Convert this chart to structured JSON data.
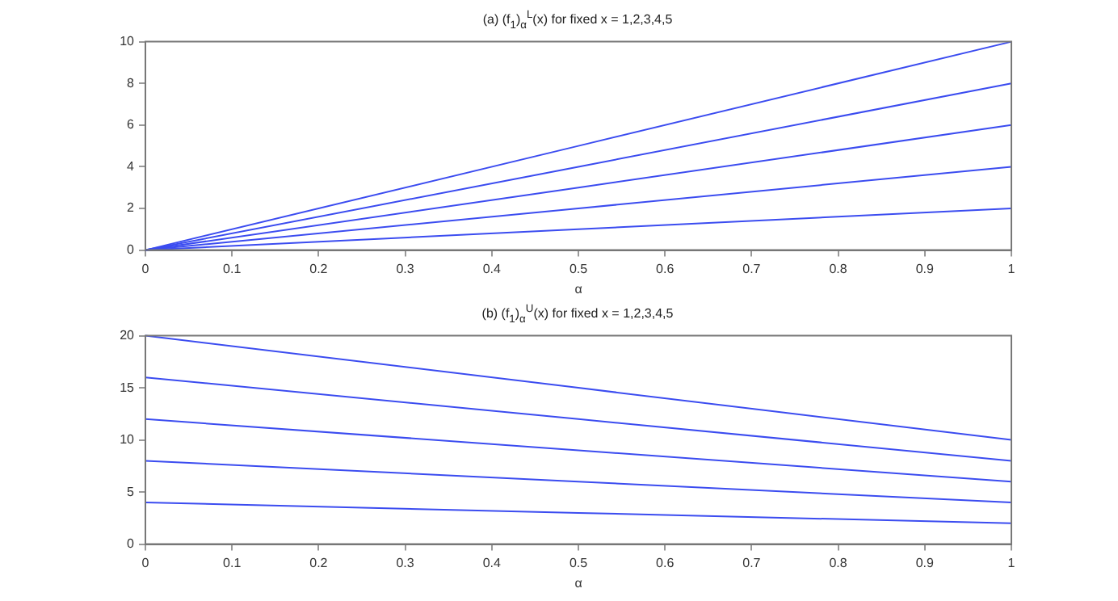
{
  "chart_data": [
    {
      "type": "line",
      "title": "(a) (f$_{1}$)$_{α}$$^{L}$(x) for fixed x = 1,2,3,4,5",
      "xlabel": "α",
      "xlim": [
        0,
        1
      ],
      "xticks": [
        0,
        0.1,
        0.2,
        0.3,
        0.4,
        0.5,
        0.6,
        0.7,
        0.8,
        0.9,
        1
      ],
      "ylim": [
        0,
        10
      ],
      "yticks": [
        0,
        2,
        4,
        6,
        8,
        10
      ],
      "grid": false,
      "legend": false,
      "marker": "none",
      "line_style": "solid",
      "series": [
        {
          "color": "#3b4cf0",
          "x": [
            0,
            0.5,
            1
          ],
          "values": [
            0,
            1,
            2
          ]
        },
        {
          "color": "#3b4cf0",
          "x": [
            0,
            0.5,
            1
          ],
          "values": [
            0,
            2,
            4
          ]
        },
        {
          "color": "#3b4cf0",
          "x": [
            0,
            0.5,
            1
          ],
          "values": [
            0,
            3,
            6
          ]
        },
        {
          "color": "#3b4cf0",
          "x": [
            0,
            0.5,
            1
          ],
          "values": [
            0,
            4,
            8
          ]
        },
        {
          "color": "#3b4cf0",
          "x": [
            0,
            0.5,
            1
          ],
          "values": [
            0,
            5,
            10
          ]
        }
      ]
    },
    {
      "type": "line",
      "title": "(b) (f$_{1}$)$_{α}$$^{U}$(x) for fixed x = 1,2,3,4,5",
      "xlabel": "α",
      "xlim": [
        0,
        1
      ],
      "xticks": [
        0,
        0.1,
        0.2,
        0.3,
        0.4,
        0.5,
        0.6,
        0.7,
        0.8,
        0.9,
        1
      ],
      "ylim": [
        0,
        20
      ],
      "yticks": [
        0,
        5,
        10,
        15,
        20
      ],
      "grid": false,
      "legend": false,
      "marker": "none",
      "line_style": "solid",
      "series": [
        {
          "color": "#3b4cf0",
          "x": [
            0,
            0.5,
            1
          ],
          "values": [
            4,
            3,
            2
          ]
        },
        {
          "color": "#3b4cf0",
          "x": [
            0,
            0.5,
            1
          ],
          "values": [
            8,
            6,
            4
          ]
        },
        {
          "color": "#3b4cf0",
          "x": [
            0,
            0.5,
            1
          ],
          "values": [
            12,
            9,
            6
          ]
        },
        {
          "color": "#3b4cf0",
          "x": [
            0,
            0.5,
            1
          ],
          "values": [
            16,
            12,
            8
          ]
        },
        {
          "color": "#3b4cf0",
          "x": [
            0,
            0.5,
            1
          ],
          "values": [
            20,
            15,
            10
          ]
        }
      ]
    }
  ]
}
